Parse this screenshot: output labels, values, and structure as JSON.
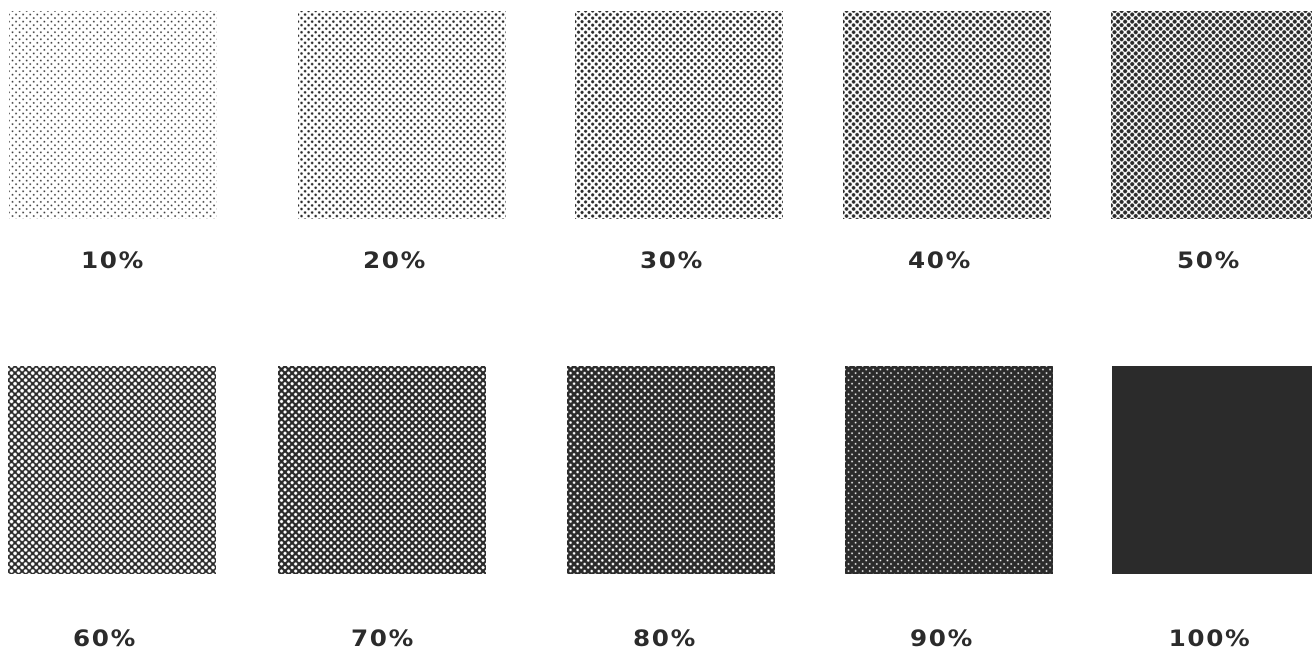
{
  "swatches": [
    {
      "label": "10%",
      "coverage": 0.1
    },
    {
      "label": "20%",
      "coverage": 0.2
    },
    {
      "label": "30%",
      "coverage": 0.3
    },
    {
      "label": "40%",
      "coverage": 0.4
    },
    {
      "label": "50%",
      "coverage": 0.5
    },
    {
      "label": "60%",
      "coverage": 0.6
    },
    {
      "label": "70%",
      "coverage": 0.7
    },
    {
      "label": "80%",
      "coverage": 0.8
    },
    {
      "label": "90%",
      "coverage": 0.9
    },
    {
      "label": "100%",
      "coverage": 1.0
    }
  ],
  "colors": {
    "ink": "#2b2b2b",
    "paper": "#ffffff"
  }
}
